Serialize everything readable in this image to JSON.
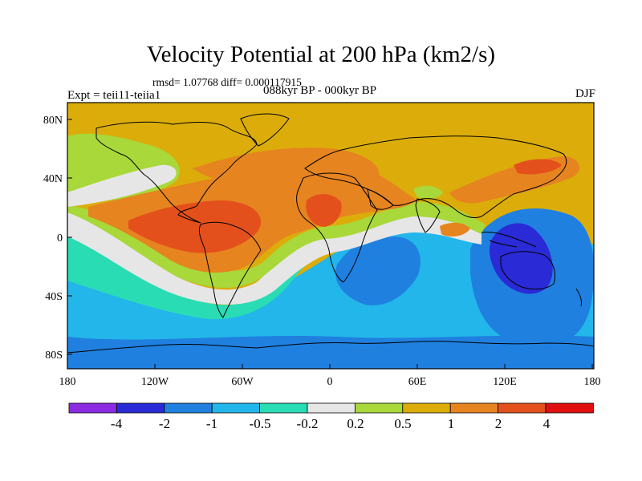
{
  "title": "Velocity Potential at 200 hPa (km2/s)",
  "stats_line": "rmsd= 1.07768 diff= 0.000117915",
  "experiment": "Expt = teii11-teiia1",
  "period": "088kyr BP - 000kyr BP",
  "season": "DJF",
  "y_ticks": [
    "80N",
    "40N",
    "0",
    "40S",
    "80S"
  ],
  "x_ticks": [
    "180",
    "120W",
    "60W",
    "0",
    "60E",
    "120E",
    "180"
  ],
  "colorbar": {
    "labels": [
      "-4",
      "-2",
      "-1",
      "-0.5",
      "-0.2",
      "0.2",
      "0.5",
      "1",
      "2",
      "4"
    ],
    "colors": [
      "#8a2be2",
      "#2a2ad6",
      "#1f80e0",
      "#23b6ea",
      "#2adcb4",
      "#e6e6e6",
      "#a8d83a",
      "#dcad0a",
      "#e68420",
      "#e4501c",
      "#e01010"
    ]
  },
  "map": {
    "projection": "cylindrical equidistant",
    "lon_range": [
      -180,
      180
    ],
    "lat_range": [
      -90,
      90
    ]
  }
}
